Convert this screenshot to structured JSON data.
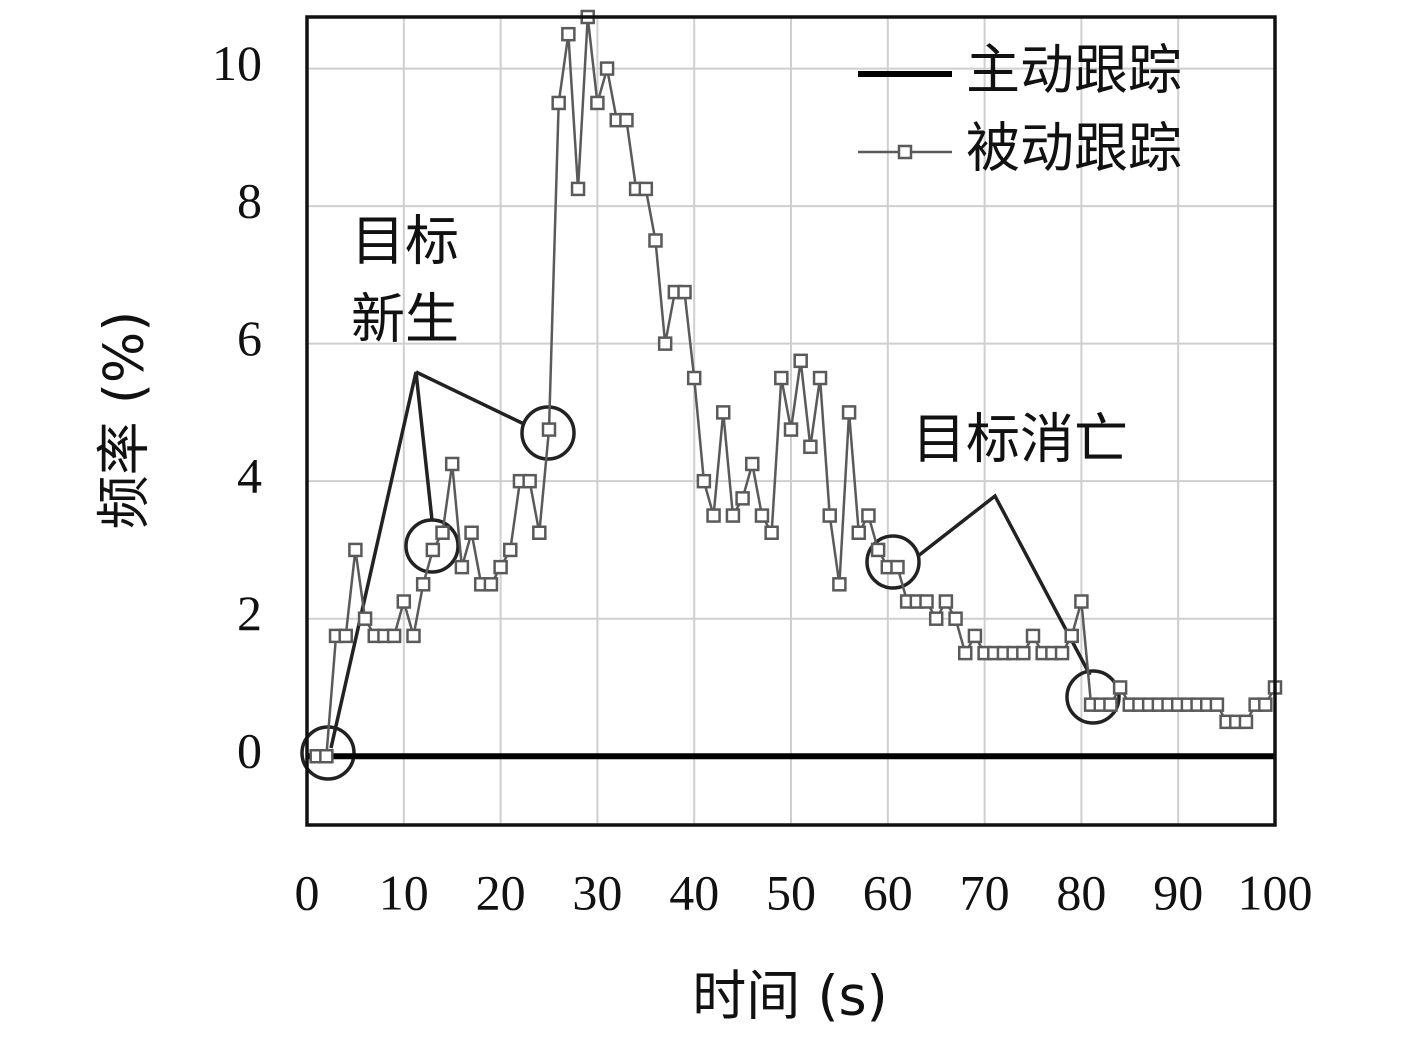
{
  "chart_data": {
    "type": "line",
    "xlabel": "时间 (s)",
    "ylabel": "频率 (%)",
    "xlim": [
      0,
      100
    ],
    "ylim": [
      -1,
      10.75
    ],
    "xticks": [
      0,
      10,
      20,
      30,
      40,
      50,
      60,
      70,
      80,
      90,
      100
    ],
    "yticks": [
      0,
      2,
      4,
      6,
      8,
      10
    ],
    "grid": true,
    "legend": "upper right",
    "annotations": [
      "目标",
      "新生",
      "目标消亡"
    ],
    "series": [
      {
        "name": "主动跟踪",
        "color": "#000000",
        "marker": "none",
        "x": [
          0,
          100
        ],
        "values": [
          0,
          0
        ]
      },
      {
        "name": "被动跟踪",
        "color": "#5a5a5a",
        "marker": "square",
        "x": [
          1,
          2,
          3,
          4,
          5,
          6,
          7,
          8,
          9,
          10,
          11,
          12,
          13,
          14,
          15,
          16,
          17,
          18,
          19,
          20,
          21,
          22,
          23,
          24,
          25,
          26,
          27,
          28,
          29,
          30,
          31,
          32,
          33,
          34,
          35,
          36,
          37,
          38,
          39,
          40,
          41,
          42,
          43,
          44,
          45,
          46,
          47,
          48,
          49,
          50,
          51,
          52,
          53,
          54,
          55,
          56,
          57,
          58,
          59,
          60,
          61,
          62,
          63,
          64,
          65,
          66,
          67,
          68,
          69,
          70,
          71,
          72,
          73,
          74,
          75,
          76,
          77,
          78,
          79,
          80,
          81,
          82,
          83,
          84,
          85,
          86,
          87,
          88,
          89,
          90,
          91,
          92,
          93,
          94,
          95,
          96,
          97,
          98,
          99,
          100
        ],
        "values": [
          0,
          0,
          1.75,
          1.75,
          3,
          2,
          1.75,
          1.75,
          1.75,
          2.25,
          1.75,
          2.5,
          3,
          3.25,
          4.25,
          2.75,
          3.25,
          2.5,
          2.5,
          2.75,
          3,
          4,
          4,
          3.25,
          4.75,
          9.5,
          10.5,
          8.25,
          10.75,
          9.5,
          10,
          9.25,
          9.25,
          8.25,
          8.25,
          7.5,
          6,
          6.75,
          6.75,
          5.5,
          4,
          3.5,
          5,
          3.5,
          3.75,
          4.25,
          3.5,
          3.25,
          5.5,
          4.75,
          5.75,
          4.5,
          5.5,
          3.5,
          2.5,
          5,
          3.25,
          3.5,
          3,
          2.75,
          2.75,
          2.25,
          2.25,
          2.25,
          2,
          2.25,
          2,
          1.5,
          1.75,
          1.5,
          1.5,
          1.5,
          1.5,
          1.5,
          1.75,
          1.5,
          1.5,
          1.5,
          1.75,
          2.25,
          0.75,
          0.75,
          0.75,
          1,
          0.75,
          0.75,
          0.75,
          0.75,
          0.75,
          0.75,
          0.75,
          0.75,
          0.75,
          0.75,
          0.5,
          0.5,
          0.5,
          0.75,
          0.75,
          1
        ]
      }
    ]
  }
}
